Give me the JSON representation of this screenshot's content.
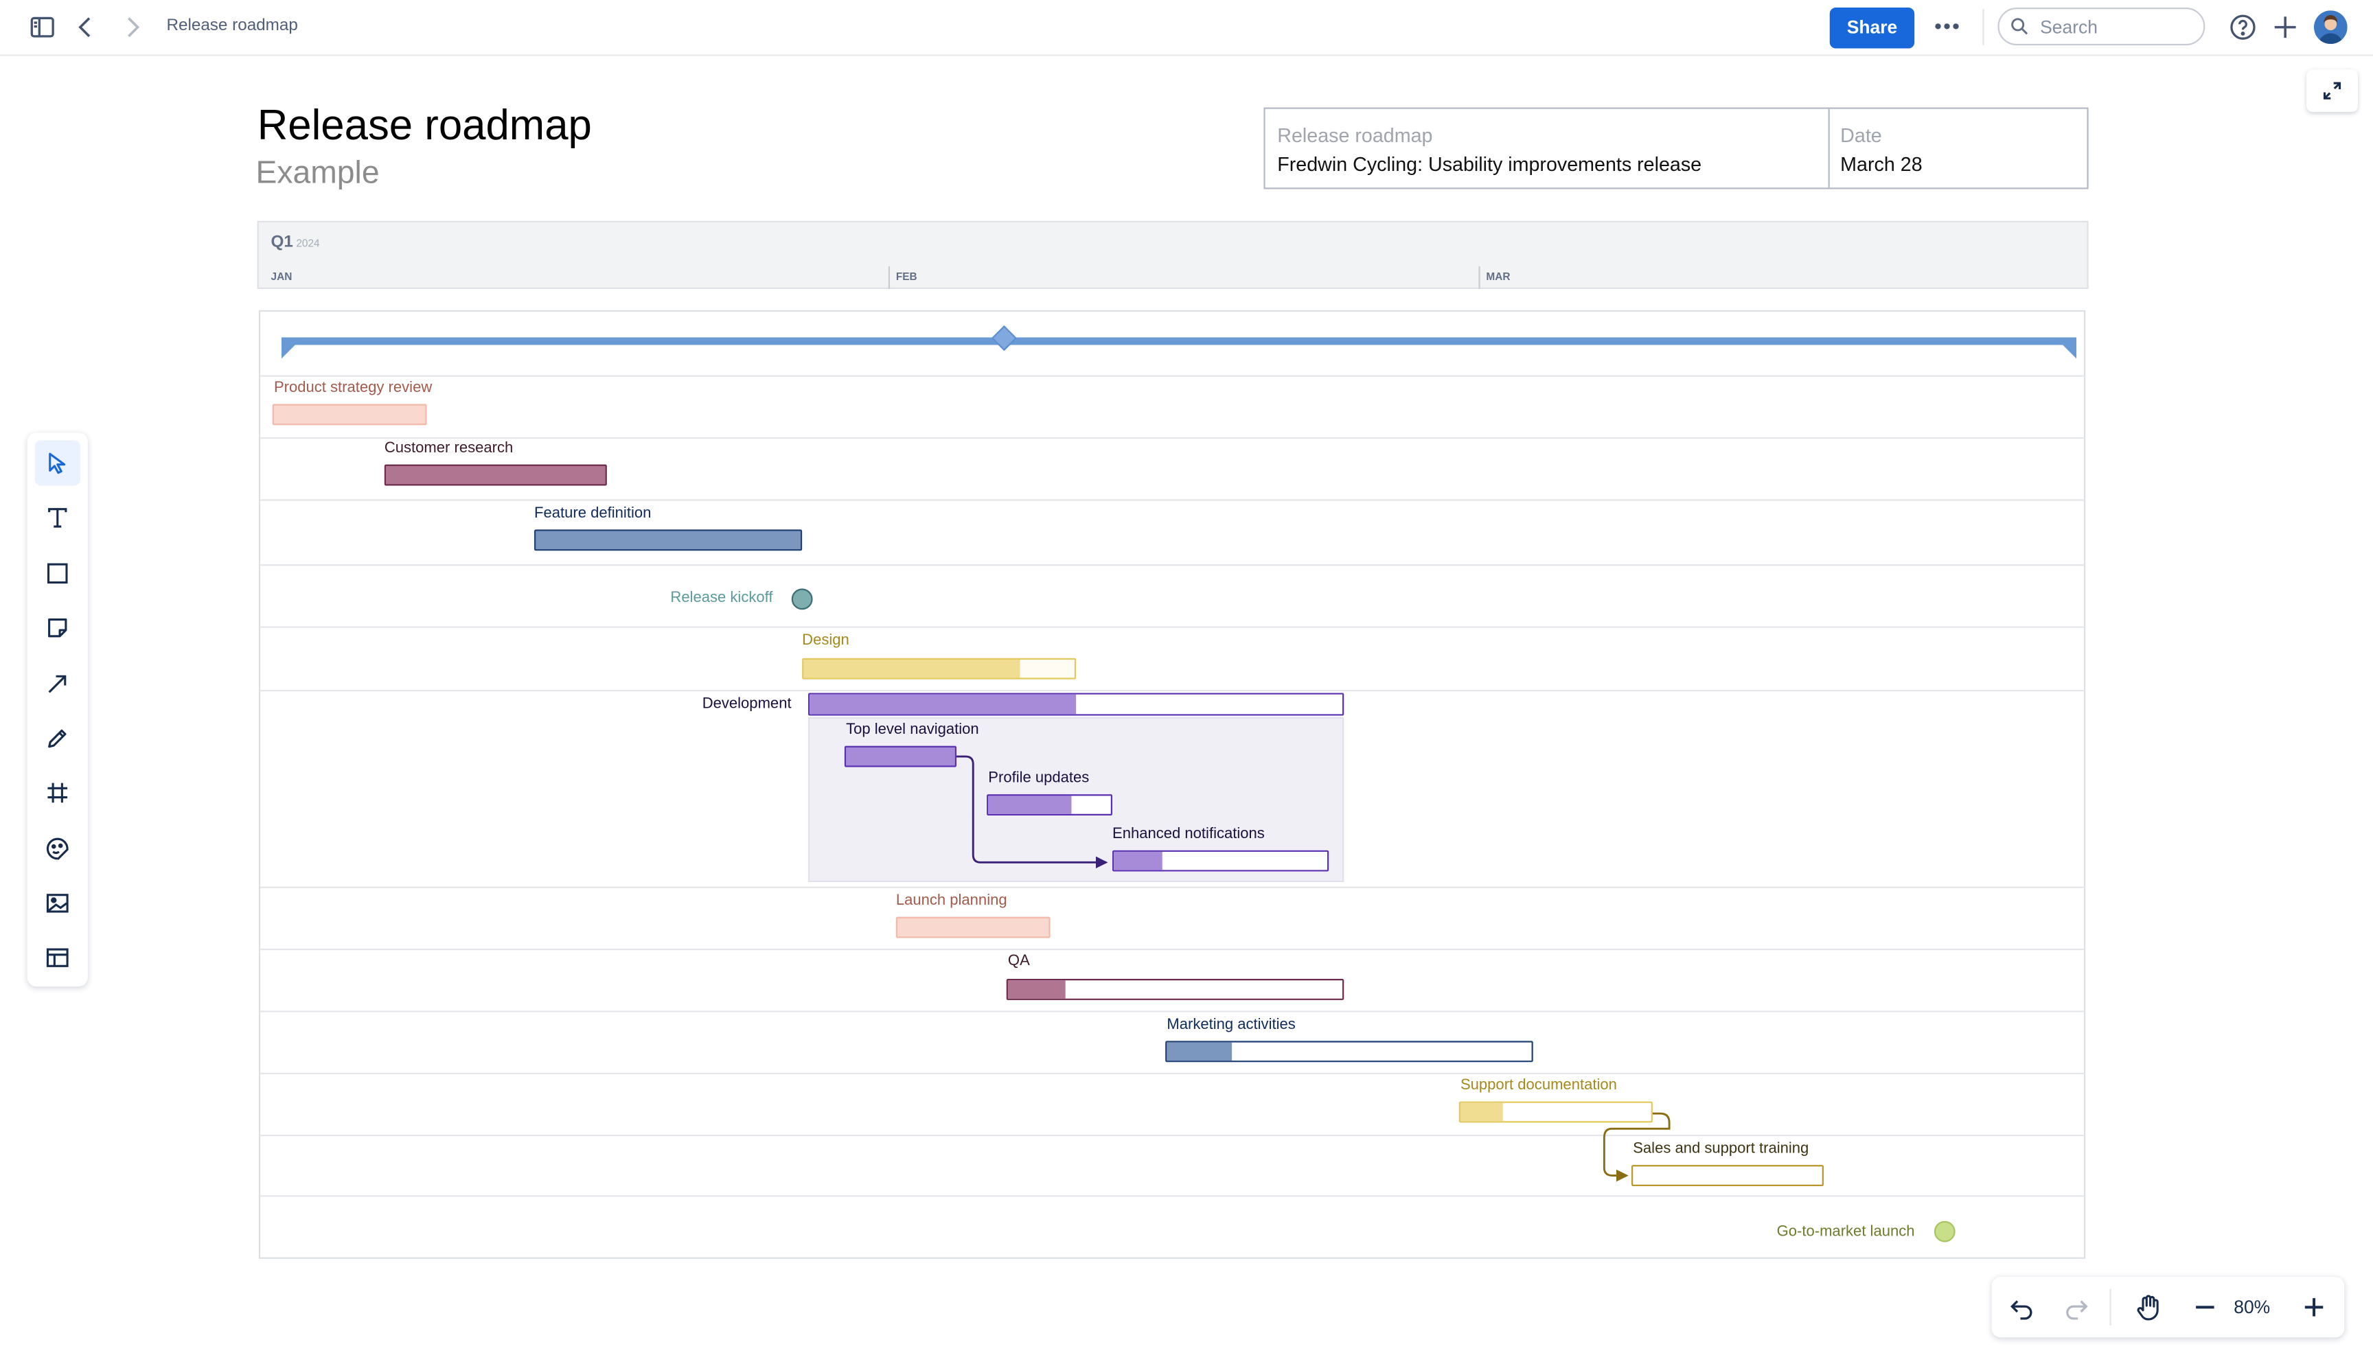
{
  "header": {
    "breadcrumb": "Release roadmap",
    "share_label": "Share",
    "more_label": "•••",
    "search_placeholder": "Search"
  },
  "page": {
    "title": "Release roadmap",
    "subtitle": "Example"
  },
  "info_table": {
    "release_label": "Release roadmap",
    "release_value": "Fredwin Cycling: Usability improvements release",
    "date_label": "Date",
    "date_value": "March 28"
  },
  "timeline": {
    "quarter": "Q1",
    "year": "2024",
    "months": [
      "JAN",
      "FEB",
      "MAR"
    ]
  },
  "tasks": {
    "product_strategy_review": {
      "label": "Product strategy review",
      "progress": 1.0,
      "color": "#f8d8cf"
    },
    "customer_research": {
      "label": "Customer research",
      "progress": 1.0,
      "color": "#b07590"
    },
    "feature_definition": {
      "label": "Feature definition",
      "progress": 1.0,
      "color": "#7b97bf"
    },
    "release_kickoff": {
      "label": "Release kickoff",
      "type": "milestone",
      "color": "#7eaeb0"
    },
    "design": {
      "label": "Design",
      "progress": 0.8,
      "color": "#f0dd91"
    },
    "development": {
      "label": "Development",
      "progress": 0.5,
      "color": "#a78bd9"
    },
    "top_level_navigation": {
      "label": "Top level navigation",
      "progress": 1.0,
      "color": "#a78bd9"
    },
    "profile_updates": {
      "label": "Profile updates",
      "progress": 0.68,
      "color": "#a78bd9"
    },
    "enhanced_notifications": {
      "label": "Enhanced notifications",
      "progress": 0.23,
      "color": "#a78bd9"
    },
    "launch_planning": {
      "label": "Launch planning",
      "progress": 1.0,
      "color": "#f8d8cf"
    },
    "qa": {
      "label": "QA",
      "progress": 0.17,
      "color": "#b07590"
    },
    "marketing_activities": {
      "label": "Marketing activities",
      "progress": 0.18,
      "color": "#7b97bf"
    },
    "support_documentation": {
      "label": "Support documentation",
      "progress": 0.22,
      "color": "#f0dd91"
    },
    "sales_and_support_training": {
      "label": "Sales and support training",
      "progress": 0.0,
      "color": "#f0dd91"
    },
    "go_to_market_launch": {
      "label": "Go-to-market launch",
      "type": "milestone",
      "color": "#c6df88"
    }
  },
  "toolbar": {
    "tools": [
      "select-tool",
      "text-tool",
      "shape-tool",
      "sticky-note-tool",
      "connector-tool",
      "pen-tool",
      "frame-tool",
      "sticker-tool",
      "image-tool",
      "template-tool"
    ]
  },
  "zoom": {
    "level": "80%"
  },
  "colors": {
    "accent": "#1868db",
    "release_bar": "#6a9ad6"
  }
}
